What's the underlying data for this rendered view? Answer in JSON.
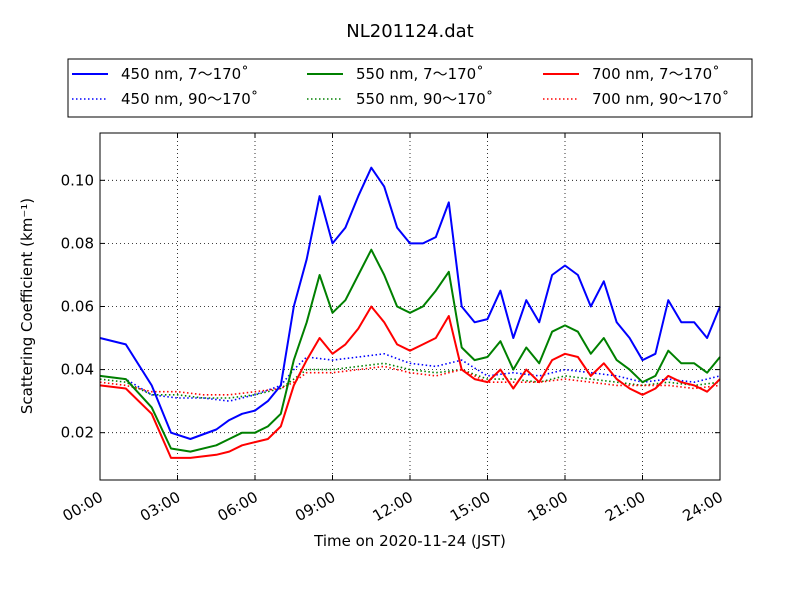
{
  "chart_data": {
    "type": "line",
    "title": "NL201124.dat",
    "xlabel": "Time on 2020-11-24 (JST)",
    "ylabel": "Scattering Coefficient (km⁻¹)",
    "xlim": [
      "00:00",
      "24:00"
    ],
    "ylim": [
      0.005,
      0.115
    ],
    "x_ticks": [
      "00:00",
      "03:00",
      "06:00",
      "09:00",
      "12:00",
      "15:00",
      "18:00",
      "21:00",
      "24:00"
    ],
    "y_ticks": [
      "0.02",
      "0.04",
      "0.06",
      "0.08",
      "0.10"
    ],
    "grid": true,
    "legend_position": "top",
    "series": [
      {
        "name": "450 nm, 7～170˚",
        "color": "#0000ff",
        "style": "solid",
        "x": [
          "00:00",
          "01:00",
          "02:00",
          "02:45",
          "03:30",
          "04:30",
          "05:00",
          "05:30",
          "06:00",
          "06:30",
          "07:00",
          "07:30",
          "08:00",
          "08:30",
          "09:00",
          "09:30",
          "10:00",
          "10:30",
          "11:00",
          "11:30",
          "12:00",
          "12:30",
          "13:00",
          "13:30",
          "14:00",
          "14:30",
          "15:00",
          "15:30",
          "16:00",
          "16:30",
          "17:00",
          "17:30",
          "18:00",
          "18:30",
          "19:00",
          "19:30",
          "20:00",
          "20:30",
          "21:00",
          "21:30",
          "22:00",
          "22:30",
          "23:00",
          "23:30",
          "24:00"
        ],
        "values": [
          0.05,
          0.048,
          0.035,
          0.02,
          0.018,
          0.021,
          0.024,
          0.026,
          0.027,
          0.03,
          0.035,
          0.06,
          0.075,
          0.095,
          0.08,
          0.085,
          0.095,
          0.104,
          0.098,
          0.085,
          0.08,
          0.08,
          0.082,
          0.093,
          0.06,
          0.055,
          0.056,
          0.065,
          0.05,
          0.062,
          0.055,
          0.07,
          0.073,
          0.07,
          0.06,
          0.068,
          0.055,
          0.05,
          0.043,
          0.045,
          0.062,
          0.055,
          0.055,
          0.05,
          0.06
        ]
      },
      {
        "name": "450 nm, 90～170˚",
        "color": "#0000ff",
        "style": "dotted",
        "x": [
          "00:00",
          "01:00",
          "02:00",
          "03:00",
          "04:00",
          "05:00",
          "06:00",
          "07:00",
          "07:30",
          "08:00",
          "09:00",
          "10:00",
          "11:00",
          "12:00",
          "13:00",
          "14:00",
          "15:00",
          "16:00",
          "17:00",
          "18:00",
          "19:00",
          "20:00",
          "21:00",
          "22:00",
          "23:00",
          "24:00"
        ],
        "values": [
          0.038,
          0.037,
          0.032,
          0.031,
          0.031,
          0.03,
          0.032,
          0.035,
          0.04,
          0.044,
          0.043,
          0.044,
          0.045,
          0.042,
          0.041,
          0.043,
          0.038,
          0.039,
          0.038,
          0.04,
          0.039,
          0.038,
          0.036,
          0.037,
          0.036,
          0.038
        ]
      },
      {
        "name": "550 nm, 7～170˚",
        "color": "#008000",
        "style": "solid",
        "x": [
          "00:00",
          "01:00",
          "02:00",
          "02:45",
          "03:30",
          "04:30",
          "05:00",
          "05:30",
          "06:00",
          "06:30",
          "07:00",
          "07:30",
          "08:00",
          "08:30",
          "09:00",
          "09:30",
          "10:00",
          "10:30",
          "11:00",
          "11:30",
          "12:00",
          "12:30",
          "13:00",
          "13:30",
          "14:00",
          "14:30",
          "15:00",
          "15:30",
          "16:00",
          "16:30",
          "17:00",
          "17:30",
          "18:00",
          "18:30",
          "19:00",
          "19:30",
          "20:00",
          "20:30",
          "21:00",
          "21:30",
          "22:00",
          "22:30",
          "23:00",
          "23:30",
          "24:00"
        ],
        "values": [
          0.038,
          0.037,
          0.028,
          0.015,
          0.014,
          0.016,
          0.018,
          0.02,
          0.02,
          0.022,
          0.026,
          0.043,
          0.055,
          0.07,
          0.058,
          0.062,
          0.07,
          0.078,
          0.07,
          0.06,
          0.058,
          0.06,
          0.065,
          0.071,
          0.047,
          0.043,
          0.044,
          0.049,
          0.04,
          0.047,
          0.042,
          0.052,
          0.054,
          0.052,
          0.045,
          0.05,
          0.043,
          0.04,
          0.036,
          0.038,
          0.046,
          0.042,
          0.042,
          0.039,
          0.044
        ]
      },
      {
        "name": "550 nm, 90～170˚",
        "color": "#008000",
        "style": "dotted",
        "x": [
          "00:00",
          "01:00",
          "02:00",
          "03:00",
          "04:00",
          "05:00",
          "06:00",
          "07:00",
          "07:30",
          "08:00",
          "09:00",
          "10:00",
          "11:00",
          "12:00",
          "13:00",
          "14:00",
          "15:00",
          "16:00",
          "17:00",
          "18:00",
          "19:00",
          "20:00",
          "21:00",
          "22:00",
          "23:00",
          "24:00"
        ],
        "values": [
          0.037,
          0.036,
          0.032,
          0.032,
          0.031,
          0.031,
          0.032,
          0.034,
          0.037,
          0.04,
          0.04,
          0.041,
          0.042,
          0.04,
          0.039,
          0.04,
          0.037,
          0.037,
          0.036,
          0.038,
          0.037,
          0.036,
          0.035,
          0.036,
          0.035,
          0.036
        ]
      },
      {
        "name": "700 nm, 7～170˚",
        "color": "#ff0000",
        "style": "solid",
        "x": [
          "00:00",
          "01:00",
          "02:00",
          "02:45",
          "03:30",
          "04:30",
          "05:00",
          "05:30",
          "06:00",
          "06:30",
          "07:00",
          "07:30",
          "08:00",
          "08:30",
          "09:00",
          "09:30",
          "10:00",
          "10:30",
          "11:00",
          "11:30",
          "12:00",
          "12:30",
          "13:00",
          "13:30",
          "14:00",
          "14:30",
          "15:00",
          "15:30",
          "16:00",
          "16:30",
          "17:00",
          "17:30",
          "18:00",
          "18:30",
          "19:00",
          "19:30",
          "20:00",
          "20:30",
          "21:00",
          "21:30",
          "22:00",
          "22:30",
          "23:00",
          "23:30",
          "24:00"
        ],
        "values": [
          0.035,
          0.034,
          0.026,
          0.012,
          0.012,
          0.013,
          0.014,
          0.016,
          0.017,
          0.018,
          0.022,
          0.035,
          0.043,
          0.05,
          0.045,
          0.048,
          0.053,
          0.06,
          0.055,
          0.048,
          0.046,
          0.048,
          0.05,
          0.057,
          0.04,
          0.037,
          0.036,
          0.04,
          0.034,
          0.04,
          0.036,
          0.043,
          0.045,
          0.044,
          0.038,
          0.042,
          0.037,
          0.034,
          0.032,
          0.034,
          0.038,
          0.036,
          0.035,
          0.033,
          0.037
        ]
      },
      {
        "name": "700 nm, 90～170˚",
        "color": "#ff0000",
        "style": "dotted",
        "x": [
          "00:00",
          "01:00",
          "02:00",
          "03:00",
          "04:00",
          "05:00",
          "06:00",
          "07:00",
          "07:30",
          "08:00",
          "09:00",
          "10:00",
          "11:00",
          "12:00",
          "13:00",
          "14:00",
          "15:00",
          "16:00",
          "17:00",
          "18:00",
          "19:00",
          "20:00",
          "21:00",
          "22:00",
          "23:00",
          "24:00"
        ],
        "values": [
          0.036,
          0.035,
          0.033,
          0.033,
          0.032,
          0.032,
          0.033,
          0.034,
          0.036,
          0.039,
          0.039,
          0.04,
          0.041,
          0.039,
          0.038,
          0.04,
          0.036,
          0.036,
          0.036,
          0.037,
          0.036,
          0.035,
          0.035,
          0.035,
          0.034,
          0.035
        ]
      }
    ]
  }
}
